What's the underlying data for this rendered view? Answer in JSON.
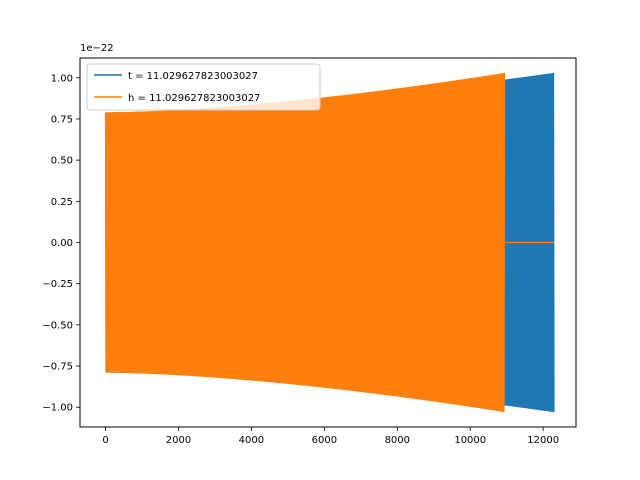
{
  "chart_data": {
    "type": "line",
    "title": "",
    "xlabel": "",
    "ylabel": "",
    "xlim": [
      -700,
      12900
    ],
    "ylim": [
      -1.12,
      1.12
    ],
    "y_offset_label": "1e−22",
    "xticks": [
      0,
      2000,
      4000,
      6000,
      8000,
      10000,
      12000
    ],
    "xtick_labels": [
      "0",
      "2000",
      "4000",
      "6000",
      "8000",
      "10000",
      "12000"
    ],
    "yticks": [
      -1.0,
      -0.75,
      -0.5,
      -0.25,
      0.0,
      0.25,
      0.5,
      0.75,
      1.0
    ],
    "ytick_labels": [
      "−1.00",
      "−0.75",
      "−0.50",
      "−0.25",
      "0.00",
      "0.25",
      "0.50",
      "0.75",
      "1.00"
    ],
    "grid": false,
    "legend": "upper-left",
    "series": [
      {
        "name": "t = 11.029627823003027",
        "color": "#1f77b4",
        "x_start": 0,
        "x_end": 12300,
        "amplitude_start": 0.79,
        "amplitude_end": 1.03
      },
      {
        "name": "h = 11.029627823003027",
        "color": "#ff7f0e",
        "x_start": 0,
        "x_end": 10950,
        "amplitude_start": 0.79,
        "amplitude_end": 1.03,
        "flat_zero_until": 12300
      }
    ]
  }
}
